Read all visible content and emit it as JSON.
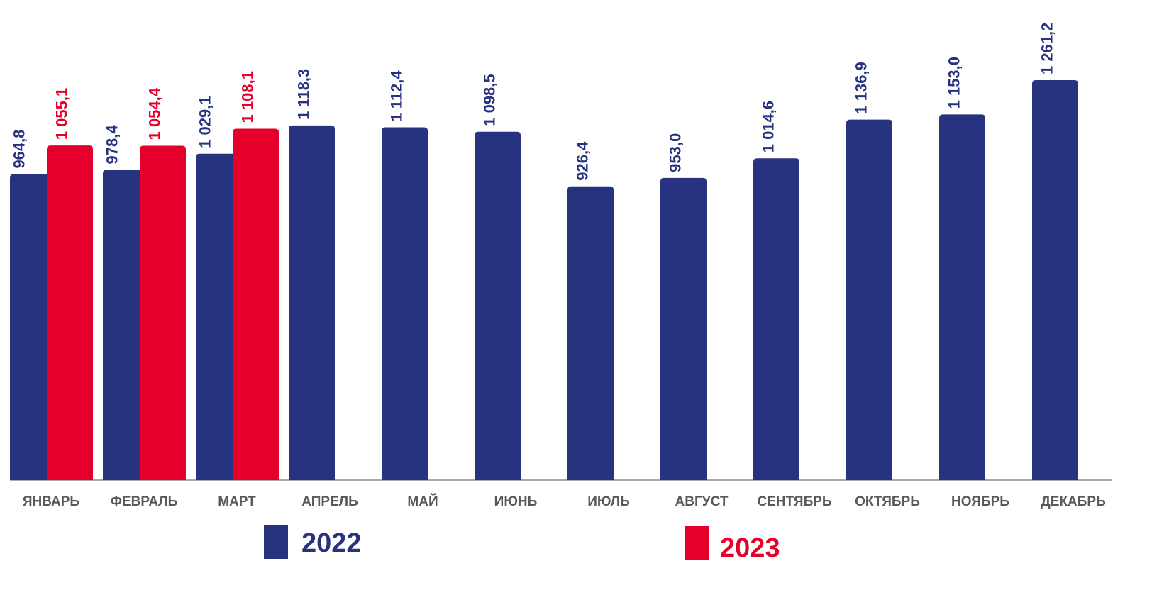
{
  "chart_data": {
    "type": "bar",
    "categories": [
      "ЯНВАРЬ",
      "ФЕВРАЛЬ",
      "МАРТ",
      "АПРЕЛЬ",
      "МАЙ",
      "ИЮНЬ",
      "ИЮЛЬ",
      "АВГУСТ",
      "СЕНТЯБРЬ",
      "ОКТЯБРЬ",
      "НОЯБРЬ",
      "ДЕКАБРЬ"
    ],
    "series": [
      {
        "name": "2022",
        "color": "#27337f",
        "values": [
          964.8,
          978.4,
          1029.1,
          1118.3,
          1112.4,
          1098.5,
          926.4,
          953.0,
          1014.6,
          1136.9,
          1153.0,
          1261.2
        ],
        "value_labels": [
          "964,8",
          "978,4",
          "1 029,1",
          "1 118,3",
          "1 112,4",
          "1 098,5",
          "926,4",
          "953,0",
          "1 014,6",
          "1 136,9",
          "1 153,0",
          "1 261,2"
        ]
      },
      {
        "name": "2023",
        "color": "#e4002b",
        "values": [
          1055.1,
          1054.4,
          1108.1,
          null,
          null,
          null,
          null,
          null,
          null,
          null,
          null,
          null
        ],
        "value_labels": [
          "1 055,1",
          "1 054,4",
          "1 108,1",
          null,
          null,
          null,
          null,
          null,
          null,
          null,
          null,
          null
        ]
      }
    ]
  }
}
